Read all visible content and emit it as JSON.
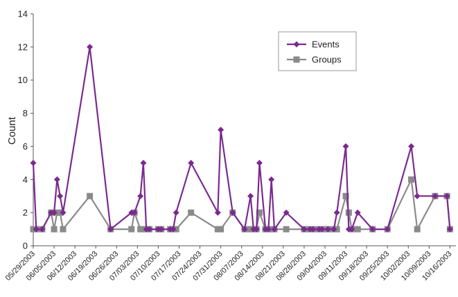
{
  "chart_data": {
    "type": "line",
    "title": "",
    "xlabel": "",
    "ylabel": "Count",
    "ylim": [
      0,
      14
    ],
    "yticks": [
      0,
      2,
      4,
      6,
      8,
      10,
      12,
      14
    ],
    "xlim": [
      "2003-05-29",
      "2003-10-18"
    ],
    "xticks": [
      {
        "date": "2003-05-29",
        "label": "05/29/2003"
      },
      {
        "date": "2003-06-05",
        "label": "06/05/2003"
      },
      {
        "date": "2003-06-12",
        "label": "06/12/2003"
      },
      {
        "date": "2003-06-19",
        "label": "06/19/2003"
      },
      {
        "date": "2003-06-26",
        "label": "06/26/2003"
      },
      {
        "date": "2003-07-03",
        "label": "07/03/2003"
      },
      {
        "date": "2003-07-10",
        "label": "07/10/2003"
      },
      {
        "date": "2003-07-17",
        "label": "07/17/2003"
      },
      {
        "date": "2003-07-24",
        "label": "07/24/2003"
      },
      {
        "date": "2003-07-31",
        "label": "07/31/2003"
      },
      {
        "date": "2003-08-07",
        "label": "08/07/2003"
      },
      {
        "date": "2003-08-14",
        "label": "08/14/2003"
      },
      {
        "date": "2003-08-21",
        "label": "08/21/2003"
      },
      {
        "date": "2003-08-28",
        "label": "08/28/2003"
      },
      {
        "date": "2003-09-04",
        "label": "09/04/2003"
      },
      {
        "date": "2003-09-11",
        "label": "09/11/2003"
      },
      {
        "date": "2003-09-18",
        "label": "09/18/2003"
      },
      {
        "date": "2003-09-25",
        "label": "09/25/2003"
      },
      {
        "date": "2003-10-02",
        "label": "10/02/2003"
      },
      {
        "date": "2003-10-09",
        "label": "10/09/2003"
      },
      {
        "date": "2003-10-16",
        "label": "10/16/2003"
      }
    ],
    "grid": false,
    "legend_position": "top-right",
    "series": [
      {
        "name": "Events",
        "color": "#7b2a8f",
        "marker": "diamond",
        "points": [
          [
            "2003-05-29",
            5
          ],
          [
            "2003-05-30",
            1
          ],
          [
            "2003-06-01",
            1
          ],
          [
            "2003-06-04",
            2
          ],
          [
            "2003-06-05",
            2
          ],
          [
            "2003-06-06",
            4
          ],
          [
            "2003-06-07",
            3
          ],
          [
            "2003-06-08",
            2
          ],
          [
            "2003-06-17",
            12
          ],
          [
            "2003-06-24",
            1
          ],
          [
            "2003-07-01",
            2
          ],
          [
            "2003-07-02",
            2
          ],
          [
            "2003-07-04",
            3
          ],
          [
            "2003-07-05",
            5
          ],
          [
            "2003-07-06",
            1
          ],
          [
            "2003-07-07",
            1
          ],
          [
            "2003-07-10",
            1
          ],
          [
            "2003-07-11",
            1
          ],
          [
            "2003-07-14",
            1
          ],
          [
            "2003-07-15",
            1
          ],
          [
            "2003-07-16",
            2
          ],
          [
            "2003-07-21",
            5
          ],
          [
            "2003-07-30",
            2
          ],
          [
            "2003-07-31",
            7
          ],
          [
            "2003-08-04",
            2
          ],
          [
            "2003-08-08",
            1
          ],
          [
            "2003-08-10",
            3
          ],
          [
            "2003-08-11",
            1
          ],
          [
            "2003-08-12",
            1
          ],
          [
            "2003-08-13",
            5
          ],
          [
            "2003-08-15",
            1
          ],
          [
            "2003-08-16",
            1
          ],
          [
            "2003-08-17",
            4
          ],
          [
            "2003-08-18",
            1
          ],
          [
            "2003-08-22",
            2
          ],
          [
            "2003-08-28",
            1
          ],
          [
            "2003-08-30",
            1
          ],
          [
            "2003-08-31",
            1
          ],
          [
            "2003-09-02",
            1
          ],
          [
            "2003-09-03",
            1
          ],
          [
            "2003-09-05",
            1
          ],
          [
            "2003-09-07",
            1
          ],
          [
            "2003-09-08",
            2
          ],
          [
            "2003-09-11",
            6
          ],
          [
            "2003-09-12",
            1
          ],
          [
            "2003-09-13",
            1
          ],
          [
            "2003-09-15",
            2
          ],
          [
            "2003-09-20",
            1
          ],
          [
            "2003-09-25",
            1
          ],
          [
            "2003-10-03",
            6
          ],
          [
            "2003-10-05",
            3
          ],
          [
            "2003-10-11",
            3
          ],
          [
            "2003-10-15",
            3
          ],
          [
            "2003-10-16",
            1
          ]
        ]
      },
      {
        "name": "Groups",
        "color": "#8a8a8a",
        "marker": "square",
        "points": [
          [
            "2003-05-29",
            1
          ],
          [
            "2003-05-30",
            1
          ],
          [
            "2003-06-01",
            1
          ],
          [
            "2003-06-04",
            2
          ],
          [
            "2003-06-05",
            1
          ],
          [
            "2003-06-06",
            2
          ],
          [
            "2003-06-07",
            2
          ],
          [
            "2003-06-08",
            1
          ],
          [
            "2003-06-17",
            3
          ],
          [
            "2003-06-24",
            1
          ],
          [
            "2003-07-01",
            1
          ],
          [
            "2003-07-02",
            2
          ],
          [
            "2003-07-04",
            1
          ],
          [
            "2003-07-05",
            1
          ],
          [
            "2003-07-06",
            1
          ],
          [
            "2003-07-07",
            1
          ],
          [
            "2003-07-10",
            1
          ],
          [
            "2003-07-11",
            1
          ],
          [
            "2003-07-14",
            1
          ],
          [
            "2003-07-15",
            1
          ],
          [
            "2003-07-16",
            1
          ],
          [
            "2003-07-21",
            2
          ],
          [
            "2003-07-30",
            1
          ],
          [
            "2003-07-31",
            1
          ],
          [
            "2003-08-04",
            2
          ],
          [
            "2003-08-08",
            1
          ],
          [
            "2003-08-10",
            1
          ],
          [
            "2003-08-11",
            1
          ],
          [
            "2003-08-12",
            1
          ],
          [
            "2003-08-13",
            2
          ],
          [
            "2003-08-15",
            1
          ],
          [
            "2003-08-16",
            1
          ],
          [
            "2003-08-17",
            1
          ],
          [
            "2003-08-18",
            1
          ],
          [
            "2003-08-22",
            1
          ],
          [
            "2003-08-28",
            1
          ],
          [
            "2003-08-30",
            1
          ],
          [
            "2003-08-31",
            1
          ],
          [
            "2003-09-02",
            1
          ],
          [
            "2003-09-03",
            1
          ],
          [
            "2003-09-05",
            1
          ],
          [
            "2003-09-07",
            1
          ],
          [
            "2003-09-08",
            1
          ],
          [
            "2003-09-11",
            3
          ],
          [
            "2003-09-12",
            2
          ],
          [
            "2003-09-13",
            1
          ],
          [
            "2003-09-15",
            1
          ],
          [
            "2003-09-20",
            1
          ],
          [
            "2003-09-25",
            1
          ],
          [
            "2003-10-03",
            4
          ],
          [
            "2003-10-05",
            1
          ],
          [
            "2003-10-11",
            3
          ],
          [
            "2003-10-15",
            3
          ],
          [
            "2003-10-16",
            1
          ]
        ]
      }
    ]
  }
}
